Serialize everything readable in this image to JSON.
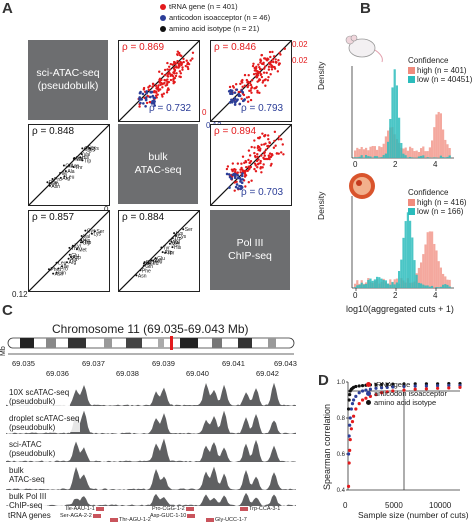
{
  "panels": {
    "A": "A",
    "B": "B",
    "C": "C",
    "D": "D"
  },
  "colors": {
    "red": "#e31a1c",
    "blue": "#2c3e98",
    "black": "#111111",
    "gray_block": "#6d6e70",
    "teal": "#2bbcbc",
    "salmon": "#f08b7d",
    "track": "#5f6062"
  },
  "panelA": {
    "legend": [
      {
        "label": "tRNA gene (n = 401)",
        "color": "#e31a1c"
      },
      {
        "label": "anticodon isoacceptor (n = 46)",
        "color": "#2c3e98"
      },
      {
        "label": "amino acid isotype (n = 21)",
        "color": "#111111"
      }
    ],
    "blocks": [
      {
        "text": "sci-ATAC-seq\n(pseudobulk)"
      },
      {
        "text": "bulk\nATAC-seq"
      },
      {
        "text": "Pol III\nChIP-seq"
      }
    ],
    "upper": [
      {
        "rho_red": "ρ = 0.869",
        "rho_blue": "ρ = 0.732"
      },
      {
        "rho_red": "ρ = 0.846",
        "rho_blue": "ρ = 0.793",
        "top_tick": "0.02",
        "bottom_tick": "0.12",
        "corner": "0"
      },
      {
        "rho_red": "ρ = 0.894",
        "rho_blue": "ρ = 0.703"
      }
    ],
    "lower": [
      {
        "rho": "ρ = 0.848"
      },
      {
        "rho": "ρ = 0.857"
      },
      {
        "rho": "ρ = 0.884"
      }
    ],
    "axis_zero": "0",
    "axis_min": "0.12",
    "aa_labels": [
      "Ser",
      "Lys",
      "Cys",
      "Gly",
      "Val",
      "Trp",
      "His",
      "Met",
      "Tyr",
      "Thr",
      "Asp",
      "Glu",
      "Ala",
      "Arg",
      "Leu",
      "Ile",
      "Pro",
      "Gln",
      "Asn",
      "Phe"
    ]
  },
  "panelB": {
    "ylabel": "Density",
    "xlabel": "log10(aggregated cuts + 1)",
    "xticks": [
      "0",
      "2",
      "4"
    ],
    "top_legend": {
      "title": "Confidence",
      "high": "high (n = 401)",
      "low": "low (n = 40451)"
    },
    "bottom_legend": {
      "title": "Confidence",
      "high": "high (n = 416)",
      "low": "low (n = 166)"
    }
  },
  "panelC": {
    "title": "Chromosome 11 (69.035-69.043 Mb)",
    "mb_label": "Mb",
    "ticks_top": [
      "69.035",
      "69.037",
      "69.039",
      "69.041",
      "69.043"
    ],
    "ticks_bottom": [
      "69.036",
      "69.038",
      "69.040",
      "69.042"
    ],
    "tracks": [
      {
        "label": "10X scATAC-seq\n(pseudobulk)"
      },
      {
        "label": "droplet scATAC-seq\n(pseudobulk)"
      },
      {
        "label": "sci-ATAC\n(pseudobulk)"
      },
      {
        "label": "bulk\nATAC-seq"
      },
      {
        "label": "bulk Pol III\nChIP-seq"
      }
    ],
    "genes_label": "tRNA genes",
    "genes": [
      "Ile-AAU-1-1",
      "Ser-AGA-2-2",
      "Thr-AGU-1-2",
      "Pro-CGG-1-2",
      "Asp-GUC-1-10",
      "Gly-UCC-1-7",
      "Trp-CCA-3-1"
    ]
  },
  "chart_data": {
    "type": "scatter",
    "title": "",
    "xlabel": "Sample size (number of cuts)",
    "ylabel": "Spearman correlation",
    "xlim": [
      0,
      10000
    ],
    "ylim": [
      0.4,
      1.0
    ],
    "xticks": [
      "0",
      "5000",
      "10000"
    ],
    "yticks": [
      "0.4",
      "0.6",
      "0.8",
      "1.0"
    ],
    "vline": 5000,
    "hline": 0.95,
    "series": [
      {
        "name": "tRNA gene",
        "color": "#e31a1c",
        "x": [
          50,
          100,
          150,
          200,
          300,
          400,
          500,
          700,
          1000,
          1300,
          1600,
          2000,
          2500,
          3000,
          3500,
          4000,
          5000,
          6000,
          7000,
          8000,
          9000,
          10000
        ],
        "y": [
          0.42,
          0.55,
          0.62,
          0.68,
          0.74,
          0.78,
          0.81,
          0.85,
          0.88,
          0.9,
          0.91,
          0.92,
          0.93,
          0.94,
          0.945,
          0.95,
          0.955,
          0.96,
          0.962,
          0.965,
          0.967,
          0.97
        ]
      },
      {
        "name": "anticodon isoacceptor",
        "color": "#2c3e98",
        "x": [
          50,
          100,
          150,
          200,
          300,
          400,
          500,
          700,
          1000,
          1300,
          1600,
          2000,
          2500,
          3000,
          3500,
          4000,
          5000,
          6000,
          7000,
          8000,
          9000,
          10000
        ],
        "y": [
          0.6,
          0.7,
          0.76,
          0.8,
          0.85,
          0.88,
          0.9,
          0.92,
          0.94,
          0.95,
          0.955,
          0.96,
          0.965,
          0.968,
          0.97,
          0.972,
          0.975,
          0.977,
          0.978,
          0.979,
          0.98,
          0.98
        ]
      },
      {
        "name": "amino acid isotype",
        "color": "#111111",
        "x": [
          50,
          100,
          150,
          200,
          300,
          400,
          500,
          700,
          1000,
          1300,
          1600,
          2000,
          2500,
          3000,
          3500,
          4000,
          5000,
          6000,
          7000,
          8000,
          9000,
          10000
        ],
        "y": [
          0.85,
          0.9,
          0.93,
          0.95,
          0.96,
          0.965,
          0.97,
          0.975,
          0.978,
          0.98,
          0.982,
          0.984,
          0.985,
          0.986,
          0.987,
          0.988,
          0.989,
          0.99,
          0.99,
          0.99,
          0.991,
          0.991
        ]
      }
    ]
  }
}
